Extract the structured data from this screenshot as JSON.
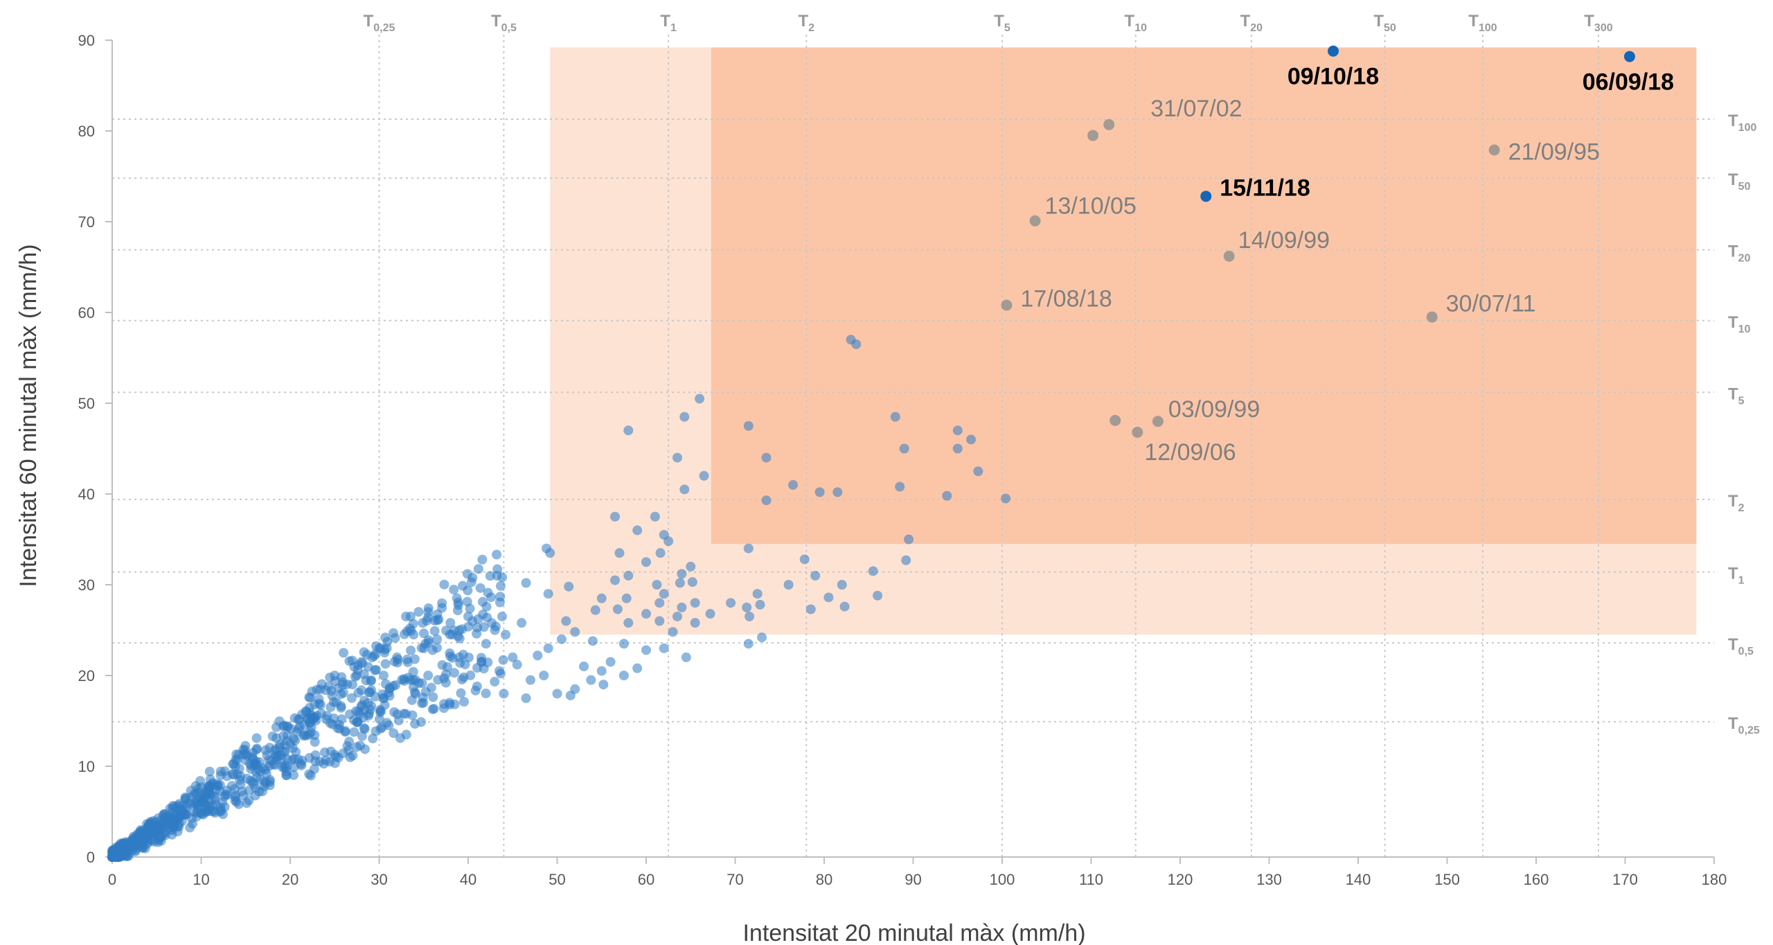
{
  "colors": {
    "points": "#2f7bc4",
    "highlight": "#1366b8",
    "zone_light": "#fde3d4",
    "zone_dark": "#fbc6a8",
    "grid": "#c8c8c8"
  },
  "chart_data": {
    "type": "scatter",
    "xlabel": "Intensitat 20 minutal màx (mm/h)",
    "ylabel": "Intensitat 60 minutal màx  (mm/h)",
    "xlim": [
      0,
      180
    ],
    "ylim": [
      0,
      90
    ],
    "x_ticks": [
      "0",
      "10",
      "20",
      "30",
      "40",
      "50",
      "60",
      "70",
      "80",
      "90",
      "100",
      "110",
      "120",
      "130",
      "140",
      "150",
      "160",
      "170",
      "180"
    ],
    "y_ticks": [
      "0",
      "10",
      "20",
      "30",
      "40",
      "50",
      "60",
      "70",
      "80",
      "90"
    ],
    "grid": "dotted return-period lines",
    "return_periods_x": [
      {
        "base": "T",
        "sub": "0,25",
        "x": 30
      },
      {
        "base": "T",
        "sub": "0,5",
        "x": 44
      },
      {
        "base": "T",
        "sub": "1",
        "x": 62.5
      },
      {
        "base": "T",
        "sub": "2",
        "x": 78
      },
      {
        "base": "T",
        "sub": "5",
        "x": 100
      },
      {
        "base": "T",
        "sub": "10",
        "x": 115
      },
      {
        "base": "T",
        "sub": "20",
        "x": 128
      },
      {
        "base": "T",
        "sub": "50",
        "x": 143
      },
      {
        "base": "T",
        "sub": "100",
        "x": 154
      },
      {
        "base": "T",
        "sub": "300",
        "x": 167
      }
    ],
    "return_periods_y": [
      {
        "base": "T",
        "sub": "0,25",
        "y": 14.9
      },
      {
        "base": "T",
        "sub": "0,5",
        "y": 23.6
      },
      {
        "base": "T",
        "sub": "1",
        "y": 31.4
      },
      {
        "base": "T",
        "sub": "2",
        "y": 39.4
      },
      {
        "base": "T",
        "sub": "5",
        "y": 51.2
      },
      {
        "base": "T",
        "sub": "10",
        "y": 59.1
      },
      {
        "base": "T",
        "sub": "20",
        "y": 66.9
      },
      {
        "base": "T",
        "sub": "50",
        "y": 74.8
      },
      {
        "base": "T",
        "sub": "100",
        "y": 81.3
      }
    ],
    "zones": [
      {
        "x": [
          49.2,
          178
        ],
        "y": [
          24.5,
          89.2
        ],
        "color": "zone_light"
      },
      {
        "x": [
          67.3,
          178
        ],
        "y": [
          34.5,
          89.2
        ],
        "color": "zone_dark"
      }
    ],
    "labeled_points": [
      {
        "x": 137.2,
        "y": 88.8,
        "label": "09/10/18",
        "highlight": true
      },
      {
        "x": 170.5,
        "y": 88.2,
        "label": "06/09/18",
        "highlight": true
      },
      {
        "x": 112.0,
        "y": 80.7,
        "label": "31/07/02",
        "highlight": false
      },
      {
        "x": 110.2,
        "y": 79.5,
        "label": "",
        "highlight": false
      },
      {
        "x": 155.3,
        "y": 77.9,
        "label": "21/09/95",
        "highlight": false
      },
      {
        "x": 122.9,
        "y": 72.8,
        "label": "15/11/18",
        "highlight": true
      },
      {
        "x": 103.7,
        "y": 70.1,
        "label": "13/10/05",
        "highlight": false
      },
      {
        "x": 125.5,
        "y": 66.2,
        "label": "14/09/99",
        "highlight": false
      },
      {
        "x": 100.5,
        "y": 60.8,
        "label": "17/08/18",
        "highlight": false
      },
      {
        "x": 148.3,
        "y": 59.5,
        "label": "30/07/11",
        "highlight": false
      },
      {
        "x": 112.7,
        "y": 48.1,
        "label": "",
        "highlight": false
      },
      {
        "x": 117.5,
        "y": 48.0,
        "label": "03/09/99",
        "highlight": false
      },
      {
        "x": 115.2,
        "y": 46.8,
        "label": "12/09/06",
        "highlight": false
      }
    ],
    "scatter_points": [
      [
        83.0,
        57.0
      ],
      [
        83.6,
        56.5
      ],
      [
        66.0,
        50.5
      ],
      [
        64.3,
        48.5
      ],
      [
        58.0,
        47.0
      ],
      [
        71.5,
        47.5
      ],
      [
        88.0,
        48.5
      ],
      [
        95.0,
        47.0
      ],
      [
        96.5,
        46.0
      ],
      [
        95.0,
        45.0
      ],
      [
        73.5,
        44.0
      ],
      [
        89.0,
        45.0
      ],
      [
        63.5,
        44.0
      ],
      [
        66.5,
        42.0
      ],
      [
        97.3,
        42.5
      ],
      [
        64.3,
        40.5
      ],
      [
        76.5,
        41.0
      ],
      [
        88.5,
        40.8
      ],
      [
        79.5,
        40.2
      ],
      [
        81.5,
        40.2
      ],
      [
        73.5,
        39.3
      ],
      [
        93.8,
        39.8
      ],
      [
        100.4,
        39.5
      ],
      [
        56.5,
        37.5
      ],
      [
        61.0,
        37.5
      ],
      [
        59.0,
        36.0
      ],
      [
        62.0,
        35.5
      ],
      [
        62.5,
        34.8
      ],
      [
        71.5,
        34.0
      ],
      [
        89.5,
        35.0
      ],
      [
        48.8,
        34.0
      ],
      [
        49.2,
        33.5
      ],
      [
        57.0,
        33.5
      ],
      [
        61.6,
        33.5
      ],
      [
        60.0,
        32.5
      ],
      [
        65.0,
        32.0
      ],
      [
        77.8,
        32.8
      ],
      [
        89.2,
        32.7
      ],
      [
        85.5,
        31.5
      ],
      [
        58.0,
        31.0
      ],
      [
        64.0,
        31.2
      ],
      [
        56.5,
        30.5
      ],
      [
        61.2,
        30.0
      ],
      [
        63.8,
        30.2
      ],
      [
        65.2,
        30.3
      ],
      [
        76.0,
        30.0
      ],
      [
        79.0,
        31.0
      ],
      [
        82.0,
        30.0
      ],
      [
        51.3,
        29.8
      ],
      [
        62.0,
        29.0
      ],
      [
        49.0,
        29.0
      ],
      [
        55.0,
        28.5
      ],
      [
        72.5,
        29.0
      ],
      [
        86.0,
        28.8
      ],
      [
        80.5,
        28.6
      ],
      [
        57.8,
        28.5
      ],
      [
        61.5,
        28.0
      ],
      [
        64.0,
        27.5
      ],
      [
        65.5,
        28.0
      ],
      [
        69.5,
        28.0
      ],
      [
        71.3,
        27.5
      ],
      [
        72.8,
        27.8
      ],
      [
        78.5,
        27.3
      ],
      [
        82.3,
        27.6
      ],
      [
        54.3,
        27.2
      ],
      [
        56.8,
        27.3
      ],
      [
        60.0,
        26.8
      ],
      [
        63.5,
        26.5
      ],
      [
        67.2,
        26.8
      ],
      [
        71.6,
        26.5
      ],
      [
        51.0,
        26.0
      ],
      [
        58.0,
        25.8
      ],
      [
        61.5,
        26.0
      ],
      [
        65.5,
        25.8
      ],
      [
        52.0,
        24.8
      ],
      [
        63.0,
        24.8
      ],
      [
        73.0,
        24.2
      ],
      [
        50.5,
        24.0
      ],
      [
        54.0,
        23.8
      ],
      [
        57.5,
        23.5
      ],
      [
        62.0,
        23.0
      ],
      [
        60.0,
        22.8
      ],
      [
        71.5,
        23.5
      ],
      [
        64.5,
        22.0
      ],
      [
        49.0,
        23.0
      ],
      [
        47.8,
        22.2
      ],
      [
        45.5,
        21.2
      ],
      [
        48.5,
        20.0
      ],
      [
        47.0,
        19.5
      ],
      [
        53.0,
        21.0
      ],
      [
        55.0,
        20.5
      ],
      [
        56.0,
        21.5
      ],
      [
        57.5,
        20.0
      ],
      [
        59.0,
        20.8
      ],
      [
        53.8,
        19.5
      ],
      [
        55.2,
        19.0
      ],
      [
        52.0,
        18.5
      ],
      [
        50.0,
        18.0
      ],
      [
        51.5,
        17.8
      ],
      [
        46.5,
        30.2
      ],
      [
        46.0,
        25.8
      ],
      [
        43.0,
        25.0
      ],
      [
        40.0,
        26.5
      ],
      [
        35.5,
        27.0
      ],
      [
        33.0,
        26.5
      ],
      [
        38.0,
        25.8
      ],
      [
        36.5,
        24.0
      ],
      [
        42.0,
        23.5
      ],
      [
        44.2,
        24.5
      ],
      [
        45.0,
        22.0
      ],
      [
        30.0,
        23.0
      ],
      [
        26.0,
        22.5
      ],
      [
        28.0,
        21.5
      ],
      [
        32.0,
        22.0
      ],
      [
        34.0,
        21.8
      ],
      [
        36.0,
        22.8
      ],
      [
        39.0,
        22.0
      ],
      [
        41.5,
        21.5
      ],
      [
        43.5,
        20.5
      ],
      [
        30.5,
        20.0
      ],
      [
        27.0,
        19.0
      ],
      [
        25.0,
        20.0
      ],
      [
        33.5,
        19.5
      ],
      [
        35.5,
        20.0
      ],
      [
        37.5,
        19.2
      ],
      [
        39.5,
        19.8
      ],
      [
        41.0,
        18.8
      ],
      [
        44.0,
        18.0
      ],
      [
        46.5,
        17.5
      ]
    ]
  }
}
